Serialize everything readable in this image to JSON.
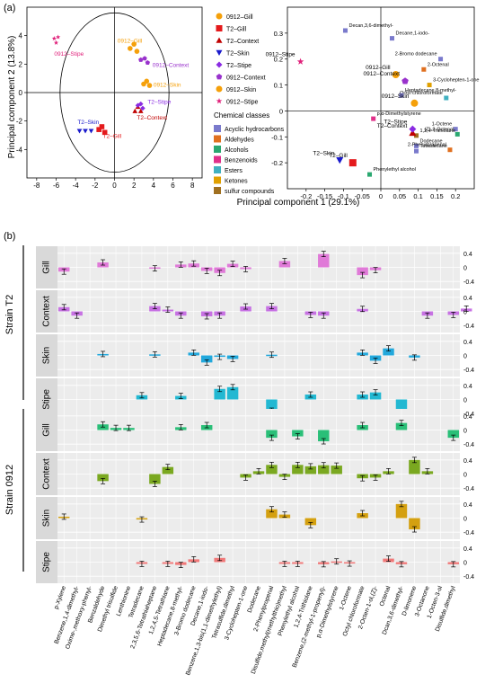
{
  "panel_a_label": "(a)",
  "panel_b_label": "(b)",
  "x_axis_label": "Principal component 1 (29.1%)",
  "y_axis_label": "Principal component 2 (13.8%)",
  "legend_title": "Chemical classes",
  "strain_t2_label": "Strain T2",
  "strain_0912_label": "Strain 0912",
  "chart_data": [
    {
      "type": "scatter",
      "panel": "a-left",
      "xlabel": "",
      "ylabel": "Principal component 2 (13.8%)",
      "xlim": [
        -9,
        9
      ],
      "ylim": [
        -6,
        6
      ],
      "xticks": [
        -8,
        -6,
        -4,
        -2,
        0,
        2,
        4,
        6,
        8
      ],
      "yticks": [
        -4,
        -2,
        0,
        2,
        4
      ],
      "series": [
        {
          "name": "0912–Gill",
          "color": "#f5a00a",
          "marker": "circle",
          "points": [
            [
              1.6,
              3.1
            ],
            [
              2.0,
              3.4
            ],
            [
              2.3,
              2.9
            ]
          ],
          "label": "0912–Gill",
          "label_at": [
            0.3,
            3.5
          ]
        },
        {
          "name": "T2–Gill",
          "color": "#e41a1c",
          "marker": "square",
          "points": [
            [
              -1.6,
              -2.6
            ],
            [
              -1.3,
              -2.4
            ],
            [
              -1.0,
              -2.8
            ]
          ],
          "label": "T2–Gill",
          "label_at": [
            -1.2,
            -3.2
          ]
        },
        {
          "name": "T2–Context",
          "color": "#c00000",
          "marker": "triangle-up",
          "points": [
            [
              2.1,
              -1.3
            ],
            [
              2.4,
              -1.0
            ],
            [
              2.7,
              -1.3
            ]
          ],
          "label": "T2–Context",
          "label_at": [
            2.3,
            -1.9
          ]
        },
        {
          "name": "T2–Skin",
          "color": "#1a1acc",
          "marker": "triangle-down",
          "points": [
            [
              -3.6,
              -2.7
            ],
            [
              -3.0,
              -2.7
            ],
            [
              -2.4,
              -2.7
            ]
          ],
          "label": "T2–Skin",
          "label_at": [
            -3.8,
            -2.2
          ]
        },
        {
          "name": "T2–Stipe",
          "color": "#8a2be2",
          "marker": "diamond",
          "points": [
            [
              2.4,
              -0.9
            ],
            [
              2.7,
              -0.8
            ],
            [
              2.9,
              -1.1
            ]
          ],
          "label": "T2–Stipe",
          "label_at": [
            3.4,
            -0.8
          ]
        },
        {
          "name": "0912–Context",
          "color": "#9932cc",
          "marker": "pentagon",
          "points": [
            [
              2.7,
              2.3
            ],
            [
              3.1,
              2.4
            ],
            [
              3.4,
              2.1
            ]
          ],
          "label": "0912–Context",
          "label_at": [
            3.9,
            1.8
          ]
        },
        {
          "name": "0912–Skin",
          "color": "#f5a00a",
          "marker": "circle",
          "points": [
            [
              3.0,
              0.6
            ],
            [
              3.3,
              0.8
            ],
            [
              3.6,
              0.5
            ]
          ],
          "label": "0912–Skin",
          "label_at": [
            4.0,
            0.4
          ]
        },
        {
          "name": "0912–Stipe",
          "color": "#e0207a",
          "marker": "star",
          "points": [
            [
              -6.2,
              3.8
            ],
            [
              -6.0,
              3.5
            ],
            [
              -5.8,
              3.9
            ]
          ],
          "label": "0912–Stipe",
          "label_at": [
            -6.2,
            2.6
          ]
        }
      ]
    },
    {
      "type": "scatter",
      "panel": "a-right",
      "xlabel": "Principal component 1 (29.1%)",
      "ylabel": "",
      "xlim": [
        -0.25,
        0.25
      ],
      "ylim": [
        -0.3,
        0.4
      ],
      "xticks": [
        -0.2,
        -0.15,
        -0.1,
        -0.05,
        0,
        0.05,
        0.1,
        0.15,
        0.2
      ],
      "yticks": [
        -0.2,
        -0.1,
        0,
        0.1,
        0.2,
        0.3
      ],
      "samples": [
        {
          "name": "0912–Gill",
          "x": 0.04,
          "y": 0.14,
          "color": "#f5a00a",
          "marker": "circle"
        },
        {
          "name": "0912–Context",
          "x": 0.065,
          "y": 0.115,
          "color": "#9932cc",
          "marker": "pentagon"
        },
        {
          "name": "0912–Skin",
          "x": 0.09,
          "y": 0.03,
          "color": "#f5a00a",
          "marker": "circle"
        },
        {
          "name": "0912–Stipe",
          "x": -0.215,
          "y": 0.19,
          "color": "#e0207a",
          "marker": "star"
        },
        {
          "name": "T2–Gill",
          "x": -0.075,
          "y": -0.2,
          "color": "#e41a1c",
          "marker": "square"
        },
        {
          "name": "T2–Context",
          "x": 0.085,
          "y": -0.085,
          "color": "#c00000",
          "marker": "triangle-up"
        },
        {
          "name": "T2–Skin",
          "x": -0.11,
          "y": -0.19,
          "color": "#1a1acc",
          "marker": "triangle-down"
        },
        {
          "name": "T2–Stipe",
          "x": 0.085,
          "y": -0.07,
          "color": "#8a2be2",
          "marker": "diamond"
        }
      ],
      "loadings": [
        {
          "name": "Decan,3,6-dimethyl-",
          "x": -0.095,
          "y": 0.31,
          "class": "Acyclic hydrocarbons"
        },
        {
          "name": "Decane,1-iodo-",
          "x": 0.03,
          "y": 0.28,
          "class": "Acyclic hydrocarbons"
        },
        {
          "name": "2-Bromo dodecane",
          "x": 0.16,
          "y": 0.2,
          "class": "Acyclic hydrocarbons"
        },
        {
          "name": "2-Octenal",
          "x": 0.115,
          "y": 0.16,
          "class": "Aldehydes"
        },
        {
          "name": "3-Cyclohepten-1-one",
          "x": 0.13,
          "y": 0.1,
          "class": "Ketones"
        },
        {
          "name": "Octyl chloroformate",
          "x": 0.175,
          "y": 0.05,
          "class": "Esters"
        },
        {
          "name": "Heptadecane,8-methyl-",
          "x": 0.055,
          "y": 0.06,
          "class": "Acyclic hydrocarbons"
        },
        {
          "name": "p,α-Dimethylstyrene",
          "x": -0.02,
          "y": -0.03,
          "class": "Benzenoids"
        },
        {
          "name": "1-Octene",
          "x": 0.2,
          "y": -0.07,
          "class": "Acyclic hydrocarbons"
        },
        {
          "name": "1,2,4-Trithiolane",
          "x": 0.095,
          "y": -0.095,
          "class": "sulfur compounds"
        },
        {
          "name": "(Z)-2-Octenol",
          "x": 0.205,
          "y": -0.09,
          "class": "Alcohols"
        },
        {
          "name": "Dodecane",
          "x": 0.095,
          "y": -0.135,
          "class": "Acyclic hydrocarbons"
        },
        {
          "name": "Tetradecane",
          "x": 0.095,
          "y": -0.155,
          "class": "Acyclic hydrocarbons"
        },
        {
          "name": "2-Phenylpropenal",
          "x": 0.185,
          "y": -0.15,
          "class": "Aldehydes"
        },
        {
          "name": "Phenylethyl alcohol",
          "x": -0.03,
          "y": -0.245,
          "class": "Alcohols"
        }
      ],
      "classes": [
        {
          "name": "Acyclic hydrocarbons",
          "color": "#7a7acc"
        },
        {
          "name": "Aldehydes",
          "color": "#e07020"
        },
        {
          "name": "Alcohols",
          "color": "#2aa870"
        },
        {
          "name": "Benzenoids",
          "color": "#e0308a"
        },
        {
          "name": "Esters",
          "color": "#40b0c0"
        },
        {
          "name": "Ketones",
          "color": "#e0a000"
        },
        {
          "name": "sulfur compounds",
          "color": "#a07020"
        }
      ]
    },
    {
      "type": "bar",
      "panel": "b",
      "ylim": [
        -0.6,
        0.6
      ],
      "yticks": [
        -0.4,
        0,
        0.4
      ],
      "ytick_labels": [
        "-0.4",
        "0",
        "0.4"
      ],
      "compounds": [
        "p-Xylene",
        "Benzene,1,4-dimethyl-",
        "Oxime-,methoxy-phenyl-",
        "Benzaldehyde",
        "Dimethyl trisulfide",
        "Lenthionine",
        "Tetradecane",
        "2,3,5,6-Tetrathiaheptane",
        "1,2,4,5-Tetrathiane",
        "Heptadecane,8-methyl-",
        "3-Bromo dodecane",
        "Decane,1-iodo-",
        "Benzene,1,3-bis(1,1-dimethylethyl)",
        "Tetrasulfide,dimethyl",
        "3-Cyclohepten-1-one",
        "Dodecane",
        "2-Phenylpropenal",
        "Disulfide,methyl(methylthio)methyl",
        "Phenylethyl alcohol",
        "1,2,4-Trithiolane",
        "Benzene,(2-methyl-1-propenyl)-",
        "p,α-Dimethylstyrene",
        "1-Octene",
        "Octyl chloroformate",
        "2-Octen-1-ol,(Z)-",
        "Octenal",
        "Dcan,3,6-dimethyl-",
        "D-limonene",
        "3-Octanone",
        "1-Octen-3-ol",
        "Disulfide,dimethyl"
      ],
      "rows": [
        {
          "strain": "Strain T2",
          "tissue": "Gill",
          "color": "#e07ad8",
          "values": [
            [
              0,
              -0.12
            ],
            [
              3,
              0.14
            ],
            [
              7,
              -0.03
            ],
            [
              9,
              0.08
            ],
            [
              10,
              0.11
            ],
            [
              11,
              -0.1
            ],
            [
              12,
              -0.16
            ],
            [
              13,
              0.1
            ],
            [
              14,
              -0.05
            ],
            [
              17,
              0.18
            ],
            [
              20,
              0.38
            ],
            [
              23,
              -0.22
            ],
            [
              24,
              -0.08
            ]
          ]
        },
        {
          "strain": "Strain T2",
          "tissue": "Context",
          "color": "#c772e3",
          "values": [
            [
              0,
              0.12
            ],
            [
              1,
              -0.12
            ],
            [
              7,
              0.15
            ],
            [
              8,
              0.05
            ],
            [
              9,
              -0.12
            ],
            [
              11,
              -0.14
            ],
            [
              12,
              -0.12
            ],
            [
              14,
              0.14
            ],
            [
              16,
              0.15
            ],
            [
              19,
              -0.1
            ],
            [
              20,
              -0.12
            ],
            [
              23,
              0.07
            ],
            [
              28,
              -0.12
            ],
            [
              30,
              -0.1
            ],
            [
              31,
              0.08
            ]
          ]
        },
        {
          "strain": "Strain T2",
          "tissue": "Skin",
          "color": "#22a8dc",
          "values": [
            [
              3,
              0.04
            ],
            [
              7,
              0.03
            ],
            [
              10,
              0.08
            ],
            [
              11,
              -0.2
            ],
            [
              12,
              -0.04
            ],
            [
              13,
              -0.1
            ],
            [
              16,
              0.02
            ],
            [
              23,
              0.08
            ],
            [
              24,
              -0.15
            ],
            [
              25,
              0.2
            ],
            [
              27,
              -0.06
            ]
          ]
        },
        {
          "strain": "Strain T2",
          "tissue": "Stipe",
          "color": "#22b8d2",
          "values": [
            [
              6,
              0.12
            ],
            [
              9,
              0.1
            ],
            [
              12,
              0.3
            ],
            [
              13,
              0.35
            ],
            [
              16,
              -0.32
            ],
            [
              19,
              0.14
            ],
            [
              23,
              0.14
            ],
            [
              24,
              0.2
            ],
            [
              26,
              -0.44
            ]
          ]
        },
        {
          "strain": "Strain 0912",
          "tissue": "Gill",
          "color": "#2abf78",
          "values": [
            [
              3,
              0.16
            ],
            [
              4,
              0.06
            ],
            [
              5,
              0.06
            ],
            [
              9,
              0.08
            ],
            [
              11,
              0.14
            ],
            [
              16,
              -0.22
            ],
            [
              18,
              -0.18
            ],
            [
              20,
              -0.32
            ],
            [
              23,
              0.14
            ],
            [
              26,
              0.2
            ],
            [
              30,
              -0.22
            ]
          ]
        },
        {
          "strain": "Strain 0912",
          "tissue": "Context",
          "color": "#7aa820",
          "values": [
            [
              3,
              -0.2
            ],
            [
              7,
              -0.28
            ],
            [
              8,
              0.2
            ],
            [
              14,
              -0.1
            ],
            [
              15,
              0.08
            ],
            [
              16,
              0.26
            ],
            [
              17,
              -0.08
            ],
            [
              18,
              0.26
            ],
            [
              19,
              0.22
            ],
            [
              20,
              0.25
            ],
            [
              21,
              0.24
            ],
            [
              23,
              -0.12
            ],
            [
              24,
              -0.1
            ],
            [
              25,
              0.08
            ],
            [
              27,
              0.4
            ],
            [
              28,
              0.08
            ]
          ]
        },
        {
          "strain": "Strain 0912",
          "tissue": "Skin",
          "color": "#d4a010",
          "values": [
            [
              0,
              0.04
            ],
            [
              6,
              -0.04
            ],
            [
              16,
              0.25
            ],
            [
              17,
              0.1
            ],
            [
              19,
              -0.2
            ],
            [
              23,
              0.14
            ],
            [
              26,
              0.4
            ],
            [
              27,
              -0.32
            ]
          ]
        },
        {
          "strain": "Strain 0912",
          "tissue": "Stipe",
          "color": "#f07878",
          "values": [
            [
              6,
              -0.05
            ],
            [
              8,
              -0.05
            ],
            [
              9,
              -0.08
            ],
            [
              10,
              0.08
            ],
            [
              12,
              0.12
            ],
            [
              17,
              -0.05
            ],
            [
              18,
              -0.05
            ],
            [
              20,
              -0.06
            ],
            [
              21,
              0.02
            ],
            [
              22,
              -0.04
            ],
            [
              25,
              0.1
            ],
            [
              26,
              -0.06
            ],
            [
              30,
              -0.06
            ]
          ]
        }
      ]
    }
  ]
}
